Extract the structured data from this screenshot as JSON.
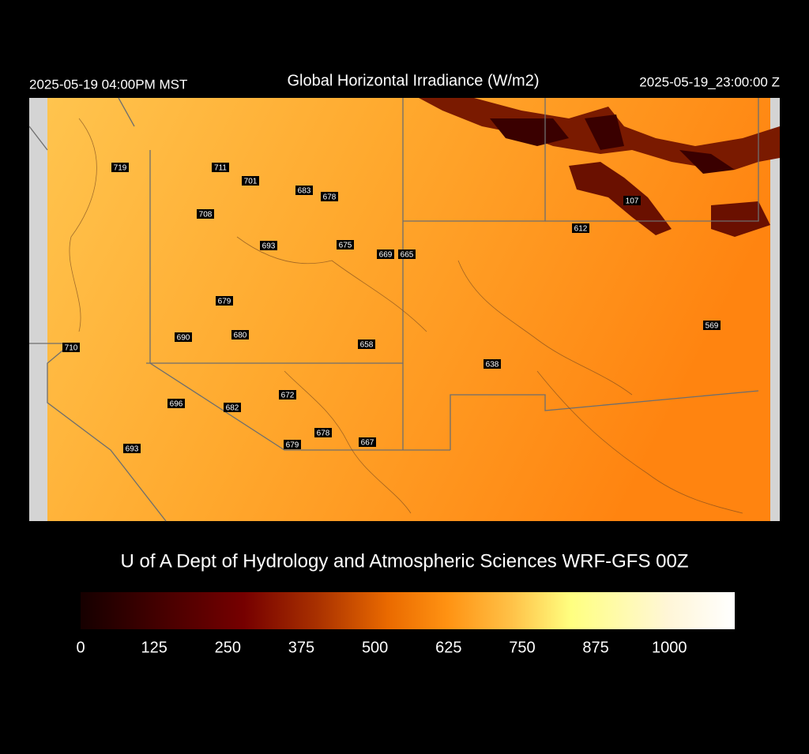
{
  "header": {
    "local_time": "2025-05-19 04:00PM MST",
    "title": "Global Horizontal Irradiance (W/m2)",
    "utc_time": "2025-05-19_23:00:00 Z"
  },
  "stations": [
    719,
    711,
    701,
    683,
    678,
    708,
    693,
    675,
    669,
    665,
    107,
    612,
    679,
    690,
    680,
    658,
    710,
    638,
    569,
    672,
    696,
    682,
    678,
    679,
    667,
    693
  ],
  "credit": "U of A Dept of Hydrology and Atmospheric Sciences WRF-GFS 00Z",
  "colorbar": {
    "lim": [
      0,
      1111
    ],
    "ticks": [
      0,
      125,
      250,
      375,
      500,
      625,
      750,
      875,
      1000
    ]
  }
}
